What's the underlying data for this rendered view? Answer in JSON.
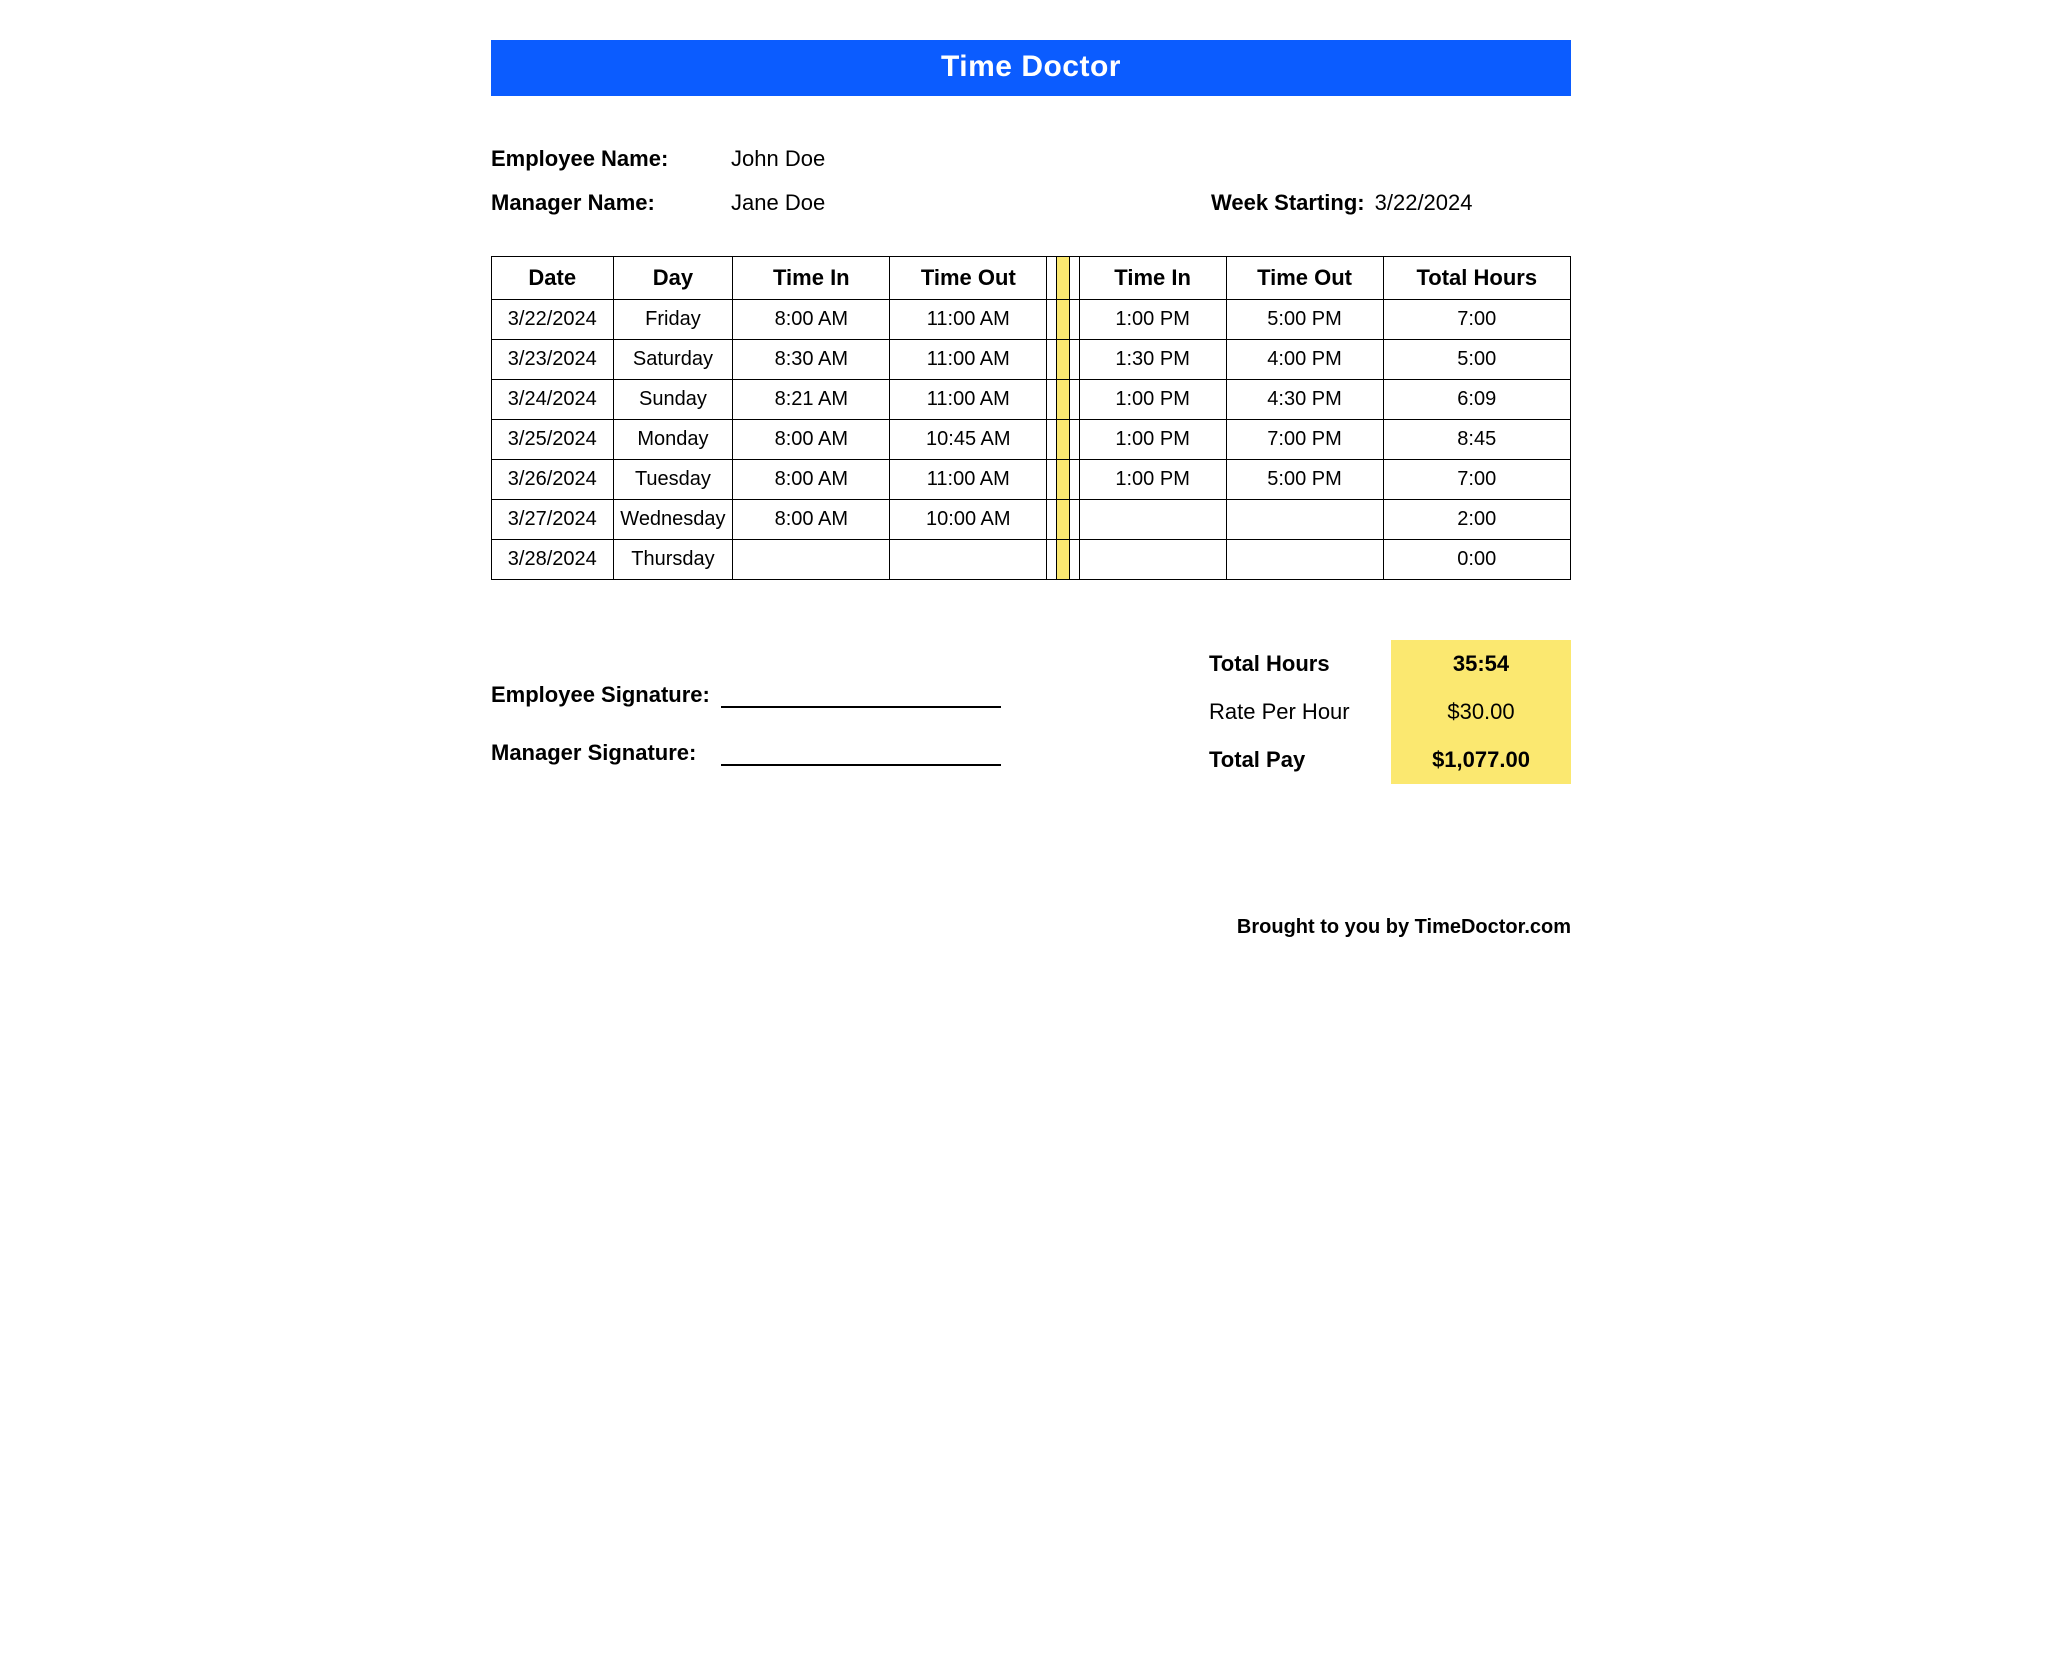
{
  "banner": {
    "title": "Time Doctor"
  },
  "colors": {
    "banner_bg": "#0b5cff",
    "banner_text": "#ffffff",
    "highlight": "#fbe870",
    "border": "#000000",
    "text": "#000000",
    "background": "#ffffff"
  },
  "info": {
    "employee_label": "Employee Name:",
    "employee_value": "John Doe",
    "manager_label": "Manager Name:",
    "manager_value": "Jane Doe",
    "week_label": "Week Starting:",
    "week_value": "3/22/2024"
  },
  "table": {
    "headers": {
      "date": "Date",
      "day": "Day",
      "time_in_1": "Time In",
      "time_out_1": "Time Out",
      "time_in_2": "Time In",
      "time_out_2": "Time Out",
      "total": "Total Hours"
    },
    "rows": [
      {
        "date": "3/22/2024",
        "day": "Friday",
        "in1": "8:00 AM",
        "out1": "11:00 AM",
        "in2": "1:00 PM",
        "out2": "5:00 PM",
        "total": "7:00"
      },
      {
        "date": "3/23/2024",
        "day": "Saturday",
        "in1": "8:30 AM",
        "out1": "11:00 AM",
        "in2": "1:30 PM",
        "out2": "4:00 PM",
        "total": "5:00"
      },
      {
        "date": "3/24/2024",
        "day": "Sunday",
        "in1": "8:21 AM",
        "out1": "11:00 AM",
        "in2": "1:00 PM",
        "out2": "4:30 PM",
        "total": "6:09"
      },
      {
        "date": "3/25/2024",
        "day": "Monday",
        "in1": "8:00 AM",
        "out1": "10:45 AM",
        "in2": "1:00 PM",
        "out2": "7:00 PM",
        "total": "8:45"
      },
      {
        "date": "3/26/2024",
        "day": "Tuesday",
        "in1": "8:00 AM",
        "out1": "11:00 AM",
        "in2": "1:00 PM",
        "out2": "5:00 PM",
        "total": "7:00"
      },
      {
        "date": "3/27/2024",
        "day": "Wednesday",
        "in1": "8:00 AM",
        "out1": "10:00 AM",
        "in2": "",
        "out2": "",
        "total": "2:00"
      },
      {
        "date": "3/28/2024",
        "day": "Thursday",
        "in1": "",
        "out1": "",
        "in2": "",
        "out2": "",
        "total": "0:00"
      }
    ]
  },
  "signatures": {
    "employee_label": "Employee Signature:",
    "manager_label": "Manager Signature:"
  },
  "totals": {
    "hours_label": "Total Hours",
    "hours_value": "35:54",
    "rate_label": "Rate Per Hour",
    "rate_value": "$30.00",
    "pay_label": "Total Pay",
    "pay_value": "$1,077.00"
  },
  "footer": {
    "text": "Brought to you by TimeDoctor.com"
  }
}
